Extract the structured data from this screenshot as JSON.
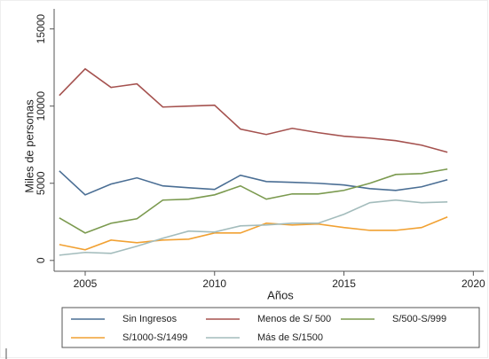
{
  "chart_data": {
    "type": "line",
    "x_label": "Años",
    "y_label": "Miles de personas",
    "x": [
      2004,
      2005,
      2006,
      2007,
      2008,
      2009,
      2010,
      2011,
      2012,
      2013,
      2014,
      2015,
      2016,
      2017,
      2018,
      2019
    ],
    "series": [
      {
        "name": "Sin Ingresos",
        "color": "#4a6e94",
        "values": [
          5800,
          4250,
          4950,
          5350,
          4830,
          4710,
          4600,
          5520,
          5110,
          5060,
          5000,
          4890,
          4650,
          4540,
          4770,
          5230
        ]
      },
      {
        "name": "Menos de S/ 500",
        "color": "#a5524f",
        "values": [
          10690,
          12410,
          11210,
          11440,
          9940,
          10000,
          10060,
          8510,
          8160,
          8560,
          8280,
          8050,
          7930,
          7760,
          7470,
          7010
        ]
      },
      {
        "name": "S/500-S/999",
        "color": "#7b9a4f",
        "values": [
          2760,
          1780,
          2410,
          2700,
          3910,
          3970,
          4250,
          4830,
          3970,
          4310,
          4310,
          4540,
          5000,
          5570,
          5630,
          5920
        ]
      },
      {
        "name": "S/1000-S/1499",
        "color": "#f1a132",
        "values": [
          1030,
          690,
          1320,
          1150,
          1320,
          1380,
          1780,
          1780,
          2410,
          2300,
          2360,
          2130,
          1950,
          1950,
          2130,
          2820
        ]
      },
      {
        "name": "Más de S/1500",
        "color": "#a3bcbc",
        "values": [
          340,
          520,
          460,
          920,
          1440,
          1900,
          1840,
          2240,
          2300,
          2410,
          2410,
          2990,
          3740,
          3910,
          3740,
          3790
        ]
      }
    ],
    "xlim": [
      2003.8,
      2020.4
    ],
    "xticks": [
      2005,
      2010,
      2015,
      2020
    ],
    "ylim": [
      -700,
      16300
    ],
    "yticks": [
      0,
      5000,
      10000,
      15000
    ],
    "legend": "bottom"
  }
}
